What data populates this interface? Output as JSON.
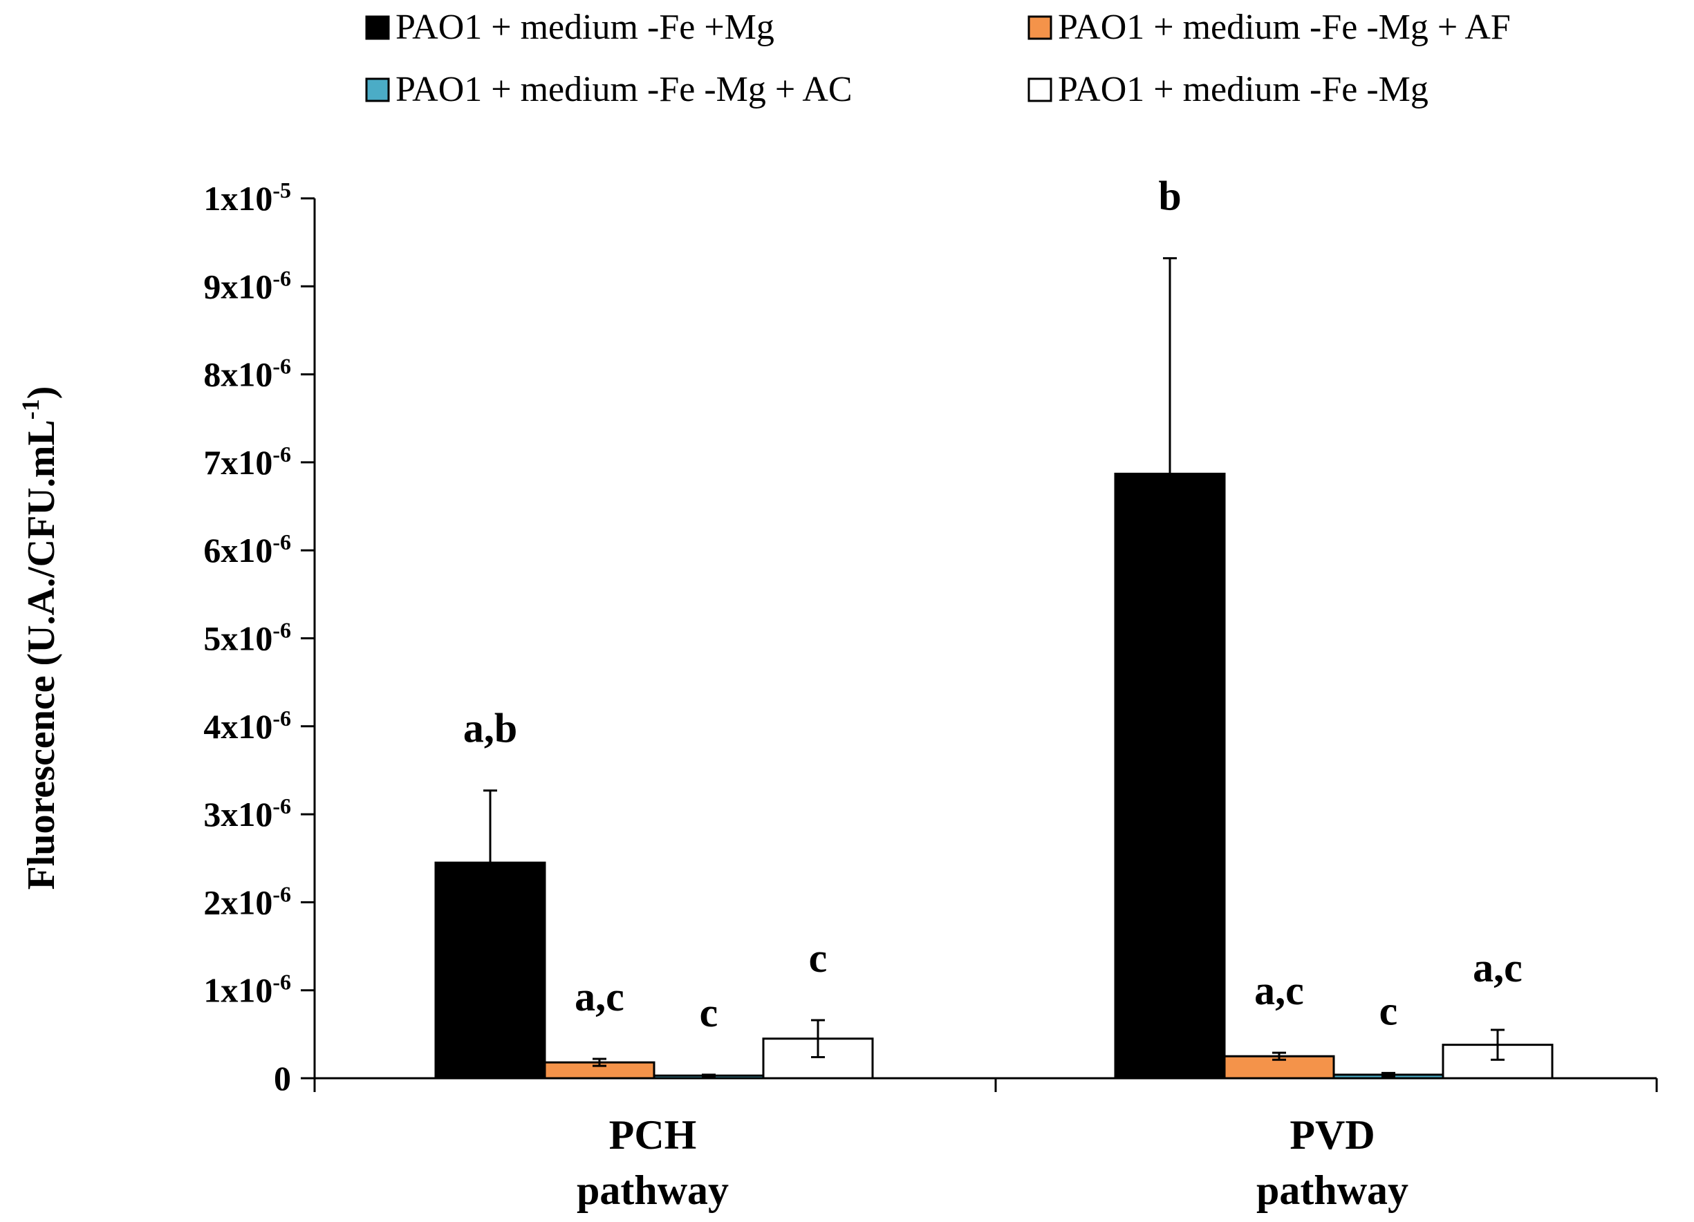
{
  "chart_data": {
    "type": "bar",
    "title": "",
    "ylabel": "Fluorescence (U.A./CFU.mL-1)",
    "ylabel_parts": {
      "main": "Fluorescence (U.A./CFU.mL",
      "sup": "-1",
      "close": ")"
    },
    "xlabel": "",
    "ylim": [
      0,
      1e-05
    ],
    "grid": false,
    "legend_position": "top",
    "yticks": [
      {
        "value": 0,
        "base": "0",
        "exp": ""
      },
      {
        "value": 1e-06,
        "base": "1x10",
        "exp": "-6"
      },
      {
        "value": 2e-06,
        "base": "2x10",
        "exp": "-6"
      },
      {
        "value": 3e-06,
        "base": "3x10",
        "exp": "-6"
      },
      {
        "value": 4e-06,
        "base": "4x10",
        "exp": "-6"
      },
      {
        "value": 5e-06,
        "base": "5x10",
        "exp": "-6"
      },
      {
        "value": 6e-06,
        "base": "6x10",
        "exp": "-6"
      },
      {
        "value": 7e-06,
        "base": "7x10",
        "exp": "-6"
      },
      {
        "value": 8e-06,
        "base": "8x10",
        "exp": "-6"
      },
      {
        "value": 9e-06,
        "base": "9x10",
        "exp": "-6"
      },
      {
        "value": 1e-05,
        "base": "1x10",
        "exp": "-5"
      }
    ],
    "categories": [
      {
        "line1": "PCH",
        "line2": "pathway"
      },
      {
        "line1": "PVD",
        "line2": "pathway"
      }
    ],
    "series": [
      {
        "name": "PAO1 + medium -Fe +Mg",
        "color": "#000000",
        "values": [
          2.45e-06,
          6.87e-06
        ],
        "errors": [
          8.2e-07,
          2.45e-06
        ],
        "error_style": "up",
        "labels": [
          "a,b",
          "b"
        ]
      },
      {
        "name": "PAO1 + medium -Fe -Mg + AF",
        "color": "#F4934A",
        "values": [
          1.8e-07,
          2.5e-07
        ],
        "errors": [
          4e-08,
          4e-08
        ],
        "error_style": "both",
        "labels": [
          "a,c",
          "a,c"
        ]
      },
      {
        "name": "PAO1 + medium -Fe -Mg + AC",
        "color": "#4BACC6",
        "values": [
          3e-08,
          4e-08
        ],
        "errors": [
          1e-08,
          2e-08
        ],
        "error_style": "both",
        "labels": [
          "c",
          "c"
        ]
      },
      {
        "name": "PAO1 + medium -Fe -Mg",
        "color": "#FFFFFF",
        "values": [
          4.5e-07,
          3.8e-07
        ],
        "errors": [
          2.1e-07,
          1.7e-07
        ],
        "error_style": "both",
        "labels": [
          "c",
          "a,c"
        ]
      }
    ],
    "legend_order": [
      0,
      1,
      2,
      3
    ]
  }
}
